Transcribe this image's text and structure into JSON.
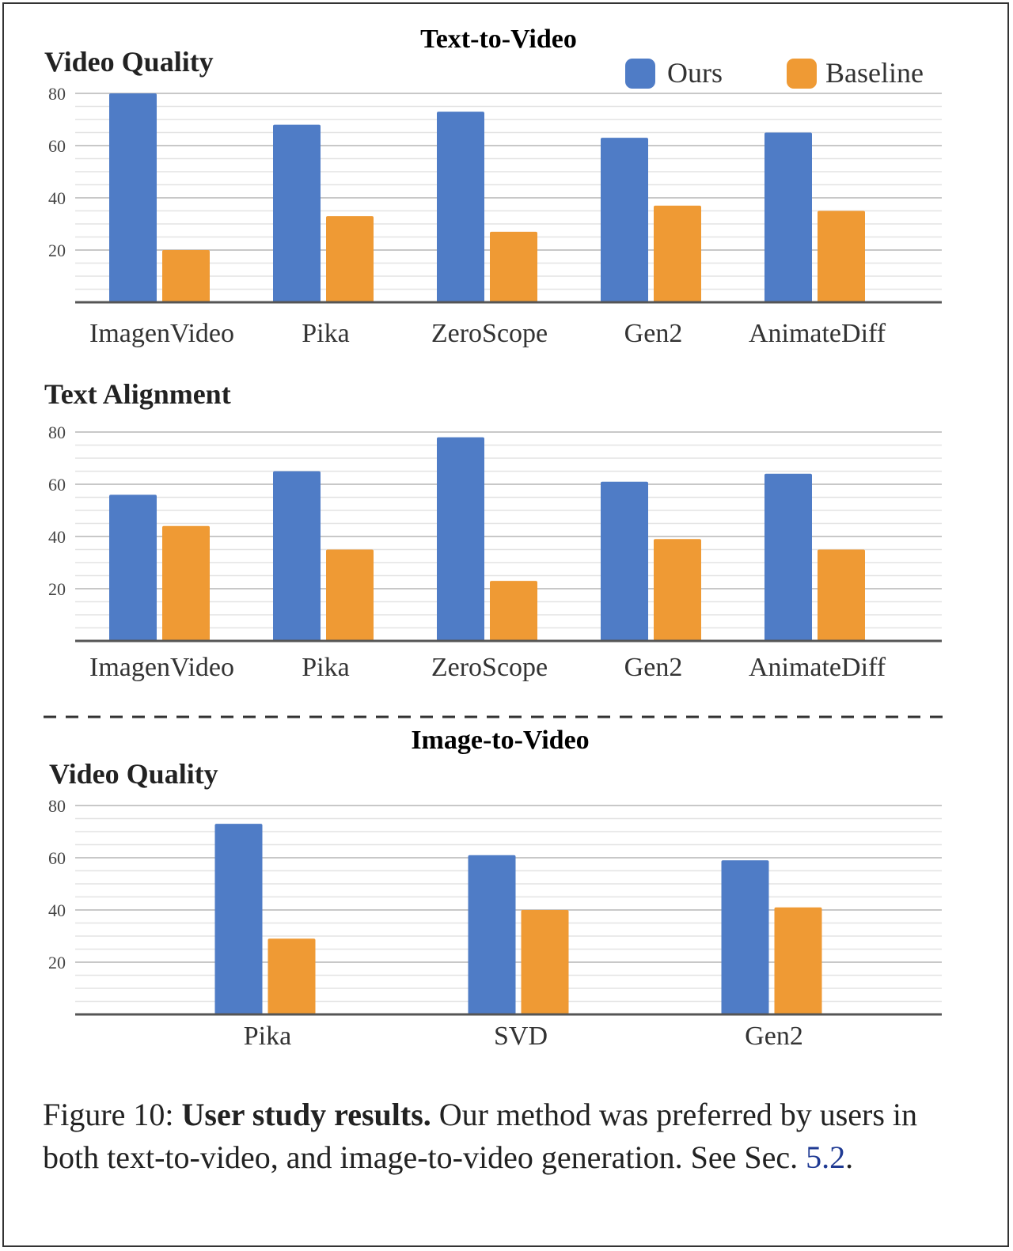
{
  "figure": {
    "section1_title": "Text-to-Video",
    "section2_title": "Image-to-Video",
    "legend": [
      {
        "label": "Ours",
        "color": "#4f7cc6"
      },
      {
        "label": "Baseline",
        "color": "#ef9a34"
      }
    ],
    "caption": {
      "prefix": "Figure 10: ",
      "bold": "User study results.",
      "text": " Our method was preferred by users in both text-to-video, and image-to-video generation. See Sec. ",
      "ref": "5.2",
      "suffix": "."
    }
  },
  "chart_data": [
    {
      "type": "bar",
      "title": "Video Quality",
      "categories": [
        "ImagenVideo",
        "Pika",
        "ZeroScope",
        "Gen2",
        "AnimateDiff"
      ],
      "series": [
        {
          "name": "Ours",
          "values": [
            80,
            68,
            73,
            63,
            65
          ]
        },
        {
          "name": "Baseline",
          "values": [
            20,
            33,
            27,
            37,
            35
          ]
        }
      ],
      "yticks": [
        20,
        40,
        60,
        80
      ],
      "ylim": [
        0,
        80
      ],
      "grid": true,
      "legend": "top-right"
    },
    {
      "type": "bar",
      "title": "Text Alignment",
      "categories": [
        "ImagenVideo",
        "Pika",
        "ZeroScope",
        "Gen2",
        "AnimateDiff"
      ],
      "series": [
        {
          "name": "Ours",
          "values": [
            56,
            65,
            78,
            61,
            64
          ]
        },
        {
          "name": "Baseline",
          "values": [
            44,
            35,
            23,
            39,
            35
          ]
        }
      ],
      "yticks": [
        20,
        40,
        60,
        80
      ],
      "ylim": [
        0,
        80
      ],
      "grid": true
    },
    {
      "type": "bar",
      "title": "Video Quality",
      "categories": [
        "Pika",
        "SVD",
        "Gen2"
      ],
      "series": [
        {
          "name": "Ours",
          "values": [
            73,
            61,
            59
          ]
        },
        {
          "name": "Baseline",
          "values": [
            29,
            40,
            41
          ]
        }
      ],
      "yticks": [
        20,
        40,
        60,
        80
      ],
      "ylim": [
        0,
        80
      ],
      "grid": true
    }
  ]
}
